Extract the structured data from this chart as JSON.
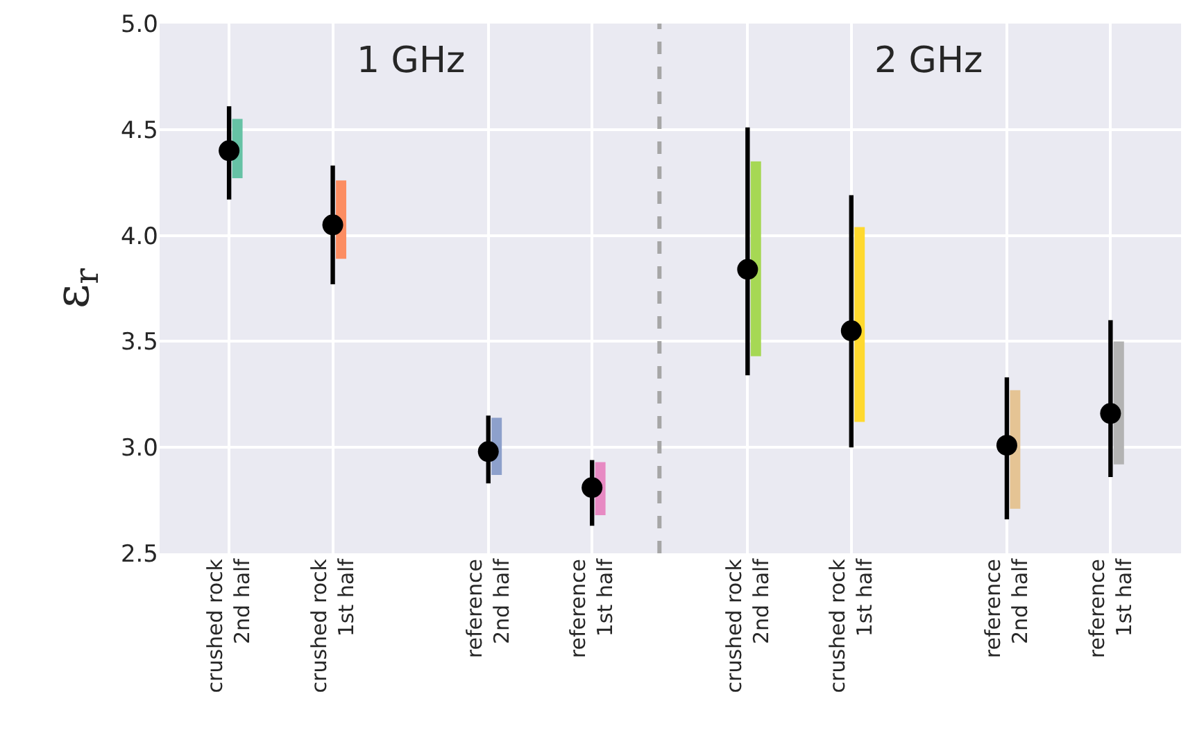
{
  "chart_data": {
    "type": "scatter",
    "ylabel": "ε$_{r}$",
    "categories": [
      "crushed rock\n2nd half",
      null,
      "crushed rock\n1st half",
      null,
      null,
      "reference\n2nd half",
      null,
      "reference\n1st half",
      null,
      null,
      "crushed rock\n2nd half",
      null,
      "crushed rock\n1st half",
      null,
      null,
      "reference\n2nd half",
      null,
      "reference\n1st half"
    ],
    "series": [
      {
        "color": "#000000",
        "marker": "circle",
        "values": [
          4.4,
          null,
          4.05,
          null,
          null,
          2.98,
          null,
          2.81,
          null,
          null,
          3.84,
          null,
          3.55,
          null,
          null,
          3.01,
          null,
          3.16
        ],
        "errors": [
          [
            4.17,
            4.61
          ],
          null,
          [
            3.77,
            4.33
          ],
          null,
          null,
          [
            2.83,
            3.15
          ],
          null,
          [
            2.63,
            2.94
          ],
          null,
          null,
          [
            3.34,
            4.51
          ],
          null,
          [
            3.0,
            4.19
          ],
          null,
          null,
          [
            2.66,
            3.33
          ],
          null,
          [
            2.86,
            3.6
          ]
        ]
      },
      {
        "type": "bar",
        "base": [
          4.27,
          null,
          3.89,
          null,
          null,
          2.87,
          null,
          2.68,
          null,
          null,
          3.43,
          null,
          3.12,
          null,
          null,
          2.71,
          null,
          2.92
        ],
        "values": [
          0.28,
          null,
          0.37,
          null,
          null,
          0.27,
          null,
          0.25,
          null,
          null,
          0.92,
          null,
          0.92,
          null,
          null,
          0.56,
          null,
          0.58
        ],
        "colors": [
          "#66c2a5",
          null,
          "#fc8d62",
          null,
          null,
          "#8da0cb",
          null,
          "#e78ac3",
          null,
          null,
          "#a6d854",
          null,
          "#ffd92f",
          null,
          null,
          "#e5c494",
          null,
          "#b3b3b3"
        ]
      }
    ],
    "ylim": [
      2.5,
      5.0
    ],
    "yticks": [
      2.5,
      {
        "value": 3.0,
        "label": "3.0"
      },
      3.5,
      {
        "value": 4.0,
        "label": "4.0"
      },
      4.5,
      {
        "value": 5.0,
        "label": "5.0"
      }
    ],
    "annotations": [
      "1 GHz",
      "2 GHz"
    ],
    "grid": true
  }
}
